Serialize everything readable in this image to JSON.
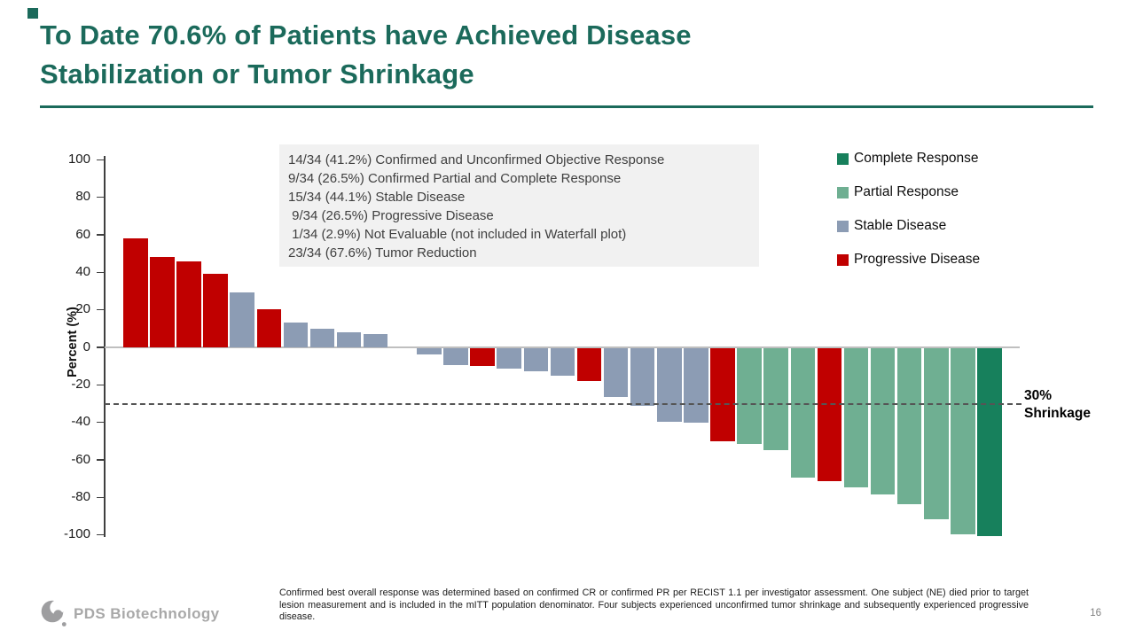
{
  "title": {
    "line1": "To Date 70.6% of Patients have Achieved Disease",
    "line2": "Stabilization or Tumor Shrinkage"
  },
  "colors": {
    "CR": "#17805C",
    "PR": "#6FAF92",
    "SD": "#8C9CB4",
    "PD": "#C00000",
    "accent_teal": "#1B6A5B",
    "stats_box_bg": "#F1F1F1",
    "dashed_line": "#555555",
    "logo_gray": "#A8A8A8"
  },
  "stats_box": {
    "lines": [
      "14/34 (41.2%) Confirmed and Unconfirmed Objective Response",
      "9/34 (26.5%) Confirmed Partial and Complete Response",
      "15/34 (44.1%) Stable Disease",
      " 9/34 (26.5%) Progressive Disease",
      " 1/34 (2.9%) Not Evaluable (not included in Waterfall plot)",
      "23/34 (67.6%) Tumor Reduction"
    ]
  },
  "legend": {
    "items": [
      {
        "key": "CR",
        "label": "Complete Response"
      },
      {
        "key": "PR",
        "label": "Partial Response"
      },
      {
        "key": "SD",
        "label": "Stable Disease"
      },
      {
        "key": "PD",
        "label": "Progressive Disease"
      }
    ]
  },
  "annotation": {
    "shrinkage_label": "30%\nShrinkage"
  },
  "footnote": "Confirmed best overall response was determined based on confirmed CR or confirmed PR per RECIST 1.1 per investigator assessment. One subject (NE) died prior to target lesion measurement and is included in the mITT population denominator. Four subjects experienced unconfirmed tumor shrinkage and subsequently experienced progressive disease.",
  "logo": {
    "text": "PDS Biotechnology"
  },
  "slide": {
    "page_number": "16"
  },
  "chart_data": {
    "type": "bar",
    "subtype": "waterfall",
    "ylabel": "Percent (%)",
    "ylim": [
      -100,
      100
    ],
    "y_ticks": [
      100,
      80,
      60,
      40,
      20,
      0,
      -20,
      -40,
      -60,
      -80,
      -100
    ],
    "grid": false,
    "legend_position": "right",
    "reference_line": {
      "value": -30,
      "style": "dashed",
      "label": "30% Shrinkage"
    },
    "category_legend": {
      "CR": "Complete Response",
      "PR": "Partial Response",
      "SD": "Stable Disease",
      "PD": "Progressive Disease"
    },
    "bars": [
      {
        "value": 58,
        "category": "PD"
      },
      {
        "value": 48,
        "category": "PD"
      },
      {
        "value": 45.5,
        "category": "PD"
      },
      {
        "value": 39,
        "category": "PD"
      },
      {
        "value": 29,
        "category": "SD"
      },
      {
        "value": 20,
        "category": "PD"
      },
      {
        "value": 13,
        "category": "SD"
      },
      {
        "value": 10,
        "category": "SD"
      },
      {
        "value": 8,
        "category": "SD"
      },
      {
        "value": 7,
        "category": "SD"
      },
      {
        "value": 0,
        "category": "SD"
      },
      {
        "value": -3,
        "category": "SD"
      },
      {
        "value": -9,
        "category": "SD"
      },
      {
        "value": -9.5,
        "category": "PD"
      },
      {
        "value": -11,
        "category": "SD"
      },
      {
        "value": -12,
        "category": "SD"
      },
      {
        "value": -14.5,
        "category": "SD"
      },
      {
        "value": -17.5,
        "category": "PD"
      },
      {
        "value": -26,
        "category": "SD"
      },
      {
        "value": -30.5,
        "category": "SD"
      },
      {
        "value": -39,
        "category": "SD"
      },
      {
        "value": -39.5,
        "category": "SD"
      },
      {
        "value": -49.5,
        "category": "PD"
      },
      {
        "value": -51,
        "category": "PR"
      },
      {
        "value": -54,
        "category": "PR"
      },
      {
        "value": -69,
        "category": "PR"
      },
      {
        "value": -71,
        "category": "PD"
      },
      {
        "value": -74,
        "category": "PR"
      },
      {
        "value": -78,
        "category": "PR"
      },
      {
        "value": -83,
        "category": "PR"
      },
      {
        "value": -91,
        "category": "PR"
      },
      {
        "value": -99,
        "category": "PR"
      },
      {
        "value": -100,
        "category": "CR"
      }
    ]
  }
}
